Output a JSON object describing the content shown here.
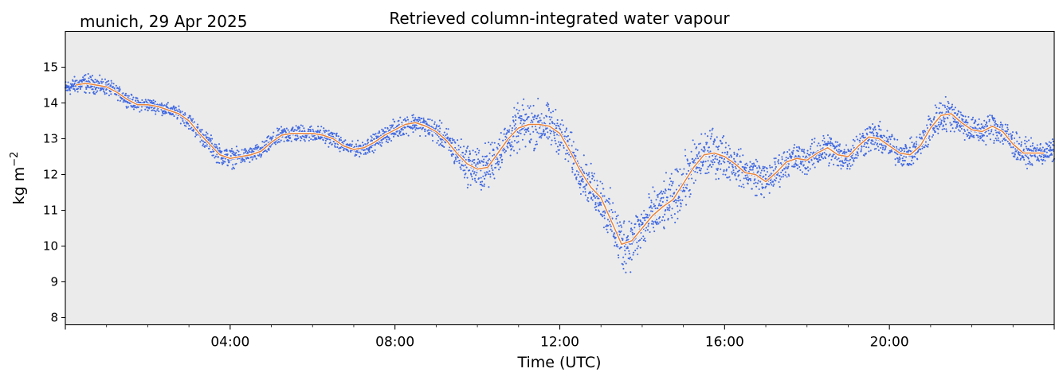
{
  "chart_data": {
    "type": "line",
    "title": "Retrieved column-integrated water vapour",
    "location_date": "munich, 29 Apr 2025",
    "xlabel": "Time (UTC)",
    "ylabel": "kg m",
    "ylabel_superscript": "−2",
    "xlim": [
      "00:00",
      "24:00"
    ],
    "ylim": [
      7.8,
      16.0
    ],
    "x_ticks": [
      "04:00",
      "08:00",
      "12:00",
      "16:00",
      "20:00"
    ],
    "x_tick_hours": [
      4,
      8,
      12,
      16,
      20
    ],
    "y_ticks": [
      "8",
      "9",
      "10",
      "11",
      "12",
      "13",
      "14",
      "15"
    ],
    "grid": false,
    "legend": "none",
    "colors": {
      "plot_background": "#ebebeb",
      "scatter": "#4169e1",
      "smoothed_outline": "#ffffff",
      "smoothed_line": "#e8833a"
    },
    "series": [
      {
        "role": "retrieved values (scatter)",
        "x_hours": [
          0.0,
          0.25,
          0.5,
          0.75,
          1.0,
          1.25,
          1.5,
          1.75,
          2.0,
          2.25,
          2.5,
          2.75,
          3.0,
          3.25,
          3.5,
          3.75,
          4.0,
          4.25,
          4.5,
          4.75,
          5.0,
          5.25,
          5.5,
          5.75,
          6.0,
          6.25,
          6.5,
          6.75,
          7.0,
          7.25,
          7.5,
          7.75,
          8.0,
          8.25,
          8.5,
          8.75,
          9.0,
          9.25,
          9.5,
          9.75,
          10.0,
          10.25,
          10.5,
          10.75,
          11.0,
          11.25,
          11.5,
          11.75,
          12.0,
          12.25,
          12.5,
          12.75,
          13.0,
          13.25,
          13.5,
          13.75,
          14.0,
          14.25,
          14.5,
          14.75,
          15.0,
          15.25,
          15.5,
          15.75,
          16.0,
          16.25,
          16.5,
          16.75,
          17.0,
          17.25,
          17.5,
          17.75,
          18.0,
          18.25,
          18.5,
          18.75,
          19.0,
          19.25,
          19.5,
          19.75,
          20.0,
          20.25,
          20.5,
          20.75,
          21.0,
          21.25,
          21.5,
          21.75,
          22.0,
          22.25,
          22.5,
          22.75,
          23.0,
          23.25,
          23.5,
          23.75,
          24.0
        ],
        "mean": [
          14.4,
          14.5,
          14.55,
          14.5,
          14.45,
          14.3,
          14.1,
          13.95,
          13.95,
          13.9,
          13.8,
          13.7,
          13.5,
          13.15,
          12.85,
          12.55,
          12.45,
          12.5,
          12.55,
          12.65,
          12.9,
          13.1,
          13.15,
          13.15,
          13.15,
          13.1,
          13.0,
          12.8,
          12.7,
          12.75,
          12.9,
          13.1,
          13.25,
          13.4,
          13.45,
          13.35,
          13.2,
          12.95,
          12.6,
          12.3,
          12.15,
          12.2,
          12.6,
          13.0,
          13.3,
          13.4,
          13.4,
          13.35,
          13.15,
          12.65,
          12.1,
          11.65,
          11.35,
          10.7,
          10.05,
          10.15,
          10.5,
          10.85,
          11.1,
          11.3,
          11.75,
          12.2,
          12.55,
          12.6,
          12.5,
          12.3,
          12.05,
          12.0,
          11.8,
          12.05,
          12.35,
          12.45,
          12.4,
          12.6,
          12.75,
          12.55,
          12.5,
          12.8,
          13.05,
          13.0,
          12.8,
          12.6,
          12.55,
          12.8,
          13.3,
          13.65,
          13.7,
          13.45,
          13.25,
          13.2,
          13.35,
          13.2,
          12.85,
          12.6,
          12.6,
          12.6,
          12.65
        ],
        "spread": [
          0.25,
          0.25,
          0.3,
          0.25,
          0.25,
          0.2,
          0.2,
          0.2,
          0.2,
          0.2,
          0.2,
          0.2,
          0.25,
          0.25,
          0.3,
          0.3,
          0.3,
          0.25,
          0.25,
          0.25,
          0.25,
          0.25,
          0.3,
          0.25,
          0.25,
          0.25,
          0.25,
          0.2,
          0.2,
          0.25,
          0.25,
          0.25,
          0.3,
          0.3,
          0.3,
          0.3,
          0.35,
          0.4,
          0.5,
          0.6,
          0.7,
          0.7,
          0.6,
          0.6,
          0.7,
          0.75,
          0.7,
          0.65,
          0.6,
          0.6,
          0.6,
          0.6,
          0.7,
          0.8,
          0.9,
          0.8,
          0.8,
          0.75,
          0.8,
          0.75,
          0.8,
          0.8,
          0.8,
          0.7,
          0.65,
          0.55,
          0.5,
          0.6,
          0.5,
          0.5,
          0.45,
          0.45,
          0.45,
          0.45,
          0.5,
          0.5,
          0.45,
          0.45,
          0.5,
          0.45,
          0.45,
          0.4,
          0.4,
          0.45,
          0.5,
          0.55,
          0.5,
          0.45,
          0.4,
          0.4,
          0.45,
          0.45,
          0.45,
          0.4,
          0.35,
          0.35,
          0.35
        ]
      },
      {
        "role": "smoothed running mean",
        "x_hours": [
          0.25,
          0.5,
          0.75,
          1.0,
          1.25,
          1.5,
          1.75,
          2.0,
          2.25,
          2.5,
          2.75,
          3.0,
          3.25,
          3.5,
          3.75,
          4.0,
          4.25,
          4.5,
          4.75,
          5.0,
          5.25,
          5.5,
          5.75,
          6.0,
          6.25,
          6.5,
          6.75,
          7.0,
          7.25,
          7.5,
          7.75,
          8.0,
          8.25,
          8.5,
          8.75,
          9.0,
          9.25,
          9.5,
          9.75,
          10.0,
          10.25,
          10.5,
          10.75,
          11.0,
          11.25,
          11.5,
          11.75,
          12.0,
          12.25,
          12.5,
          12.75,
          13.0,
          13.25,
          13.5,
          13.75,
          14.0,
          14.25,
          14.5,
          14.75,
          15.0,
          15.25,
          15.5,
          15.75,
          16.0,
          16.25,
          16.5,
          16.75,
          17.0,
          17.25,
          17.5,
          17.75,
          18.0,
          18.25,
          18.5,
          18.75,
          19.0,
          19.25,
          19.5,
          19.75,
          20.0,
          20.25,
          20.5,
          20.75,
          21.0,
          21.25,
          21.5,
          21.75,
          22.0,
          22.25,
          22.5,
          22.75,
          23.0,
          23.25,
          23.5,
          23.75
        ],
        "values": [
          14.5,
          14.55,
          14.5,
          14.45,
          14.3,
          14.1,
          13.95,
          13.95,
          13.9,
          13.8,
          13.7,
          13.5,
          13.15,
          12.85,
          12.55,
          12.45,
          12.5,
          12.55,
          12.65,
          12.9,
          13.1,
          13.15,
          13.15,
          13.15,
          13.1,
          13.0,
          12.8,
          12.7,
          12.75,
          12.9,
          13.1,
          13.25,
          13.4,
          13.45,
          13.35,
          13.2,
          12.95,
          12.6,
          12.3,
          12.15,
          12.2,
          12.6,
          13.0,
          13.3,
          13.4,
          13.4,
          13.35,
          13.15,
          12.65,
          12.1,
          11.65,
          11.35,
          10.7,
          10.05,
          10.15,
          10.5,
          10.85,
          11.1,
          11.3,
          11.75,
          12.2,
          12.55,
          12.6,
          12.5,
          12.3,
          12.05,
          12.0,
          11.8,
          12.05,
          12.35,
          12.45,
          12.4,
          12.6,
          12.75,
          12.55,
          12.5,
          12.8,
          13.05,
          13.0,
          12.8,
          12.6,
          12.55,
          12.8,
          13.3,
          13.65,
          13.7,
          13.45,
          13.25,
          13.2,
          13.35,
          13.2,
          12.85,
          12.6,
          12.6,
          12.6
        ]
      }
    ]
  }
}
